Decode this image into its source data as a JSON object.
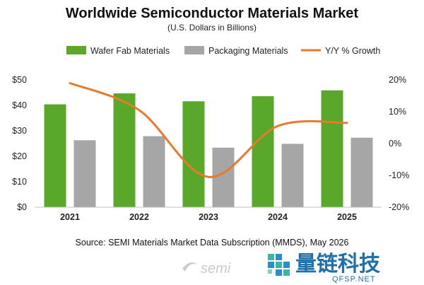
{
  "chart_data": {
    "type": "bar",
    "title": "Worldwide Semiconductor Materials Market",
    "subtitle": "(U.S. Dollars in Billions)",
    "categories": [
      "2021",
      "2022",
      "2023",
      "2024",
      "2025"
    ],
    "series": [
      {
        "name": "Wafer Fab Materials",
        "type": "bar",
        "axis": "left",
        "color": "#5aa82a",
        "values": [
          40.4,
          44.7,
          41.6,
          43.6,
          45.9
        ]
      },
      {
        "name": "Packaging  Materials",
        "type": "bar",
        "axis": "left",
        "color": "#a6a6a6",
        "values": [
          26.3,
          27.9,
          23.4,
          24.9,
          27.3
        ]
      },
      {
        "name": "Y/Y % Growth",
        "type": "line",
        "axis": "right",
        "color": "#e97a2b",
        "values": [
          19,
          10.5,
          -10.5,
          5.5,
          6.5
        ]
      }
    ],
    "y_left": {
      "ticks": [
        "$0",
        "$10",
        "$20",
        "$30",
        "$40",
        "$50"
      ],
      "ylim": [
        0,
        50
      ]
    },
    "y_right": {
      "ticks": [
        "-20%",
        "-10%",
        "0%",
        "10%",
        "20%"
      ],
      "ylim": [
        -20,
        20
      ]
    },
    "legend_position": "top",
    "grid": false
  },
  "source": "Source:  SEMI Materials Market Data Subscription (MMDS), May 2026",
  "watermark": {
    "brand_logo": "semi",
    "cn_text": "量链科技",
    "domain": "QFSP.NET"
  }
}
